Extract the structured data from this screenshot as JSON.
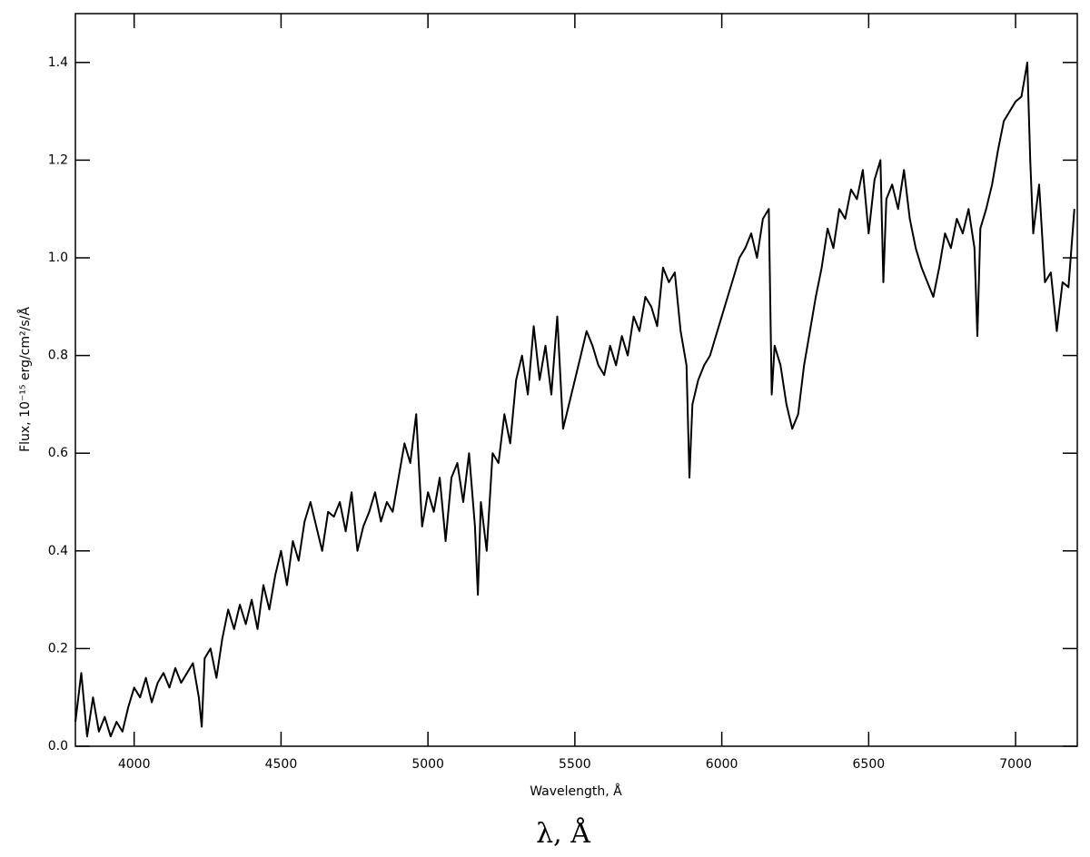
{
  "chart_data": {
    "type": "line",
    "xlabel": "Wavelength, Å",
    "ylabel": "Flux, 10⁻¹⁵ erg/cm²/s/Å",
    "annotation": "λ, Å",
    "color": "#000000",
    "xlim": [
      3800,
      7210
    ],
    "ylim": [
      0,
      1.5
    ],
    "xticks": [
      4000,
      4500,
      5000,
      5500,
      6000,
      6500,
      7000
    ],
    "yticks": [
      {
        "value": 0,
        "label": "0.0"
      },
      0.2,
      0.4,
      0.6,
      0.8,
      {
        "value": 1,
        "label": "1.0"
      },
      1.2,
      1.4
    ],
    "grid": false,
    "x": [
      3800,
      3820,
      3840,
      3860,
      3880,
      3900,
      3920,
      3940,
      3960,
      3980,
      4000,
      4020,
      4040,
      4060,
      4080,
      4100,
      4120,
      4140,
      4160,
      4180,
      4200,
      4220,
      4230,
      4240,
      4260,
      4280,
      4300,
      4320,
      4340,
      4360,
      4380,
      4400,
      4420,
      4440,
      4460,
      4480,
      4500,
      4520,
      4540,
      4560,
      4580,
      4600,
      4620,
      4640,
      4660,
      4680,
      4700,
      4720,
      4740,
      4760,
      4780,
      4800,
      4820,
      4840,
      4860,
      4880,
      4900,
      4920,
      4940,
      4960,
      4980,
      5000,
      5020,
      5040,
      5060,
      5080,
      5100,
      5120,
      5140,
      5160,
      5170,
      5180,
      5200,
      5220,
      5240,
      5260,
      5280,
      5300,
      5320,
      5340,
      5360,
      5380,
      5400,
      5420,
      5440,
      5460,
      5480,
      5500,
      5520,
      5540,
      5560,
      5580,
      5600,
      5620,
      5640,
      5660,
      5680,
      5700,
      5720,
      5740,
      5760,
      5780,
      5800,
      5820,
      5840,
      5860,
      5880,
      5890,
      5900,
      5920,
      5940,
      5960,
      5980,
      6000,
      6020,
      6040,
      6060,
      6080,
      6100,
      6120,
      6140,
      6160,
      6170,
      6180,
      6200,
      6220,
      6240,
      6260,
      6280,
      6300,
      6320,
      6340,
      6360,
      6380,
      6400,
      6420,
      6440,
      6460,
      6480,
      6500,
      6520,
      6540,
      6550,
      6560,
      6580,
      6600,
      6620,
      6640,
      6660,
      6680,
      6700,
      6720,
      6740,
      6760,
      6780,
      6800,
      6820,
      6840,
      6860,
      6870,
      6880,
      6900,
      6920,
      6940,
      6960,
      6980,
      7000,
      7020,
      7040,
      7050,
      7060,
      7080,
      7100,
      7120,
      7140,
      7160,
      7180,
      7200
    ],
    "values": [
      0.05,
      0.15,
      0.02,
      0.1,
      0.03,
      0.06,
      0.02,
      0.05,
      0.03,
      0.08,
      0.12,
      0.1,
      0.14,
      0.09,
      0.13,
      0.15,
      0.12,
      0.16,
      0.13,
      0.15,
      0.17,
      0.1,
      0.04,
      0.18,
      0.2,
      0.14,
      0.22,
      0.28,
      0.24,
      0.29,
      0.25,
      0.3,
      0.24,
      0.33,
      0.28,
      0.35,
      0.4,
      0.33,
      0.42,
      0.38,
      0.46,
      0.5,
      0.45,
      0.4,
      0.48,
      0.47,
      0.5,
      0.44,
      0.52,
      0.4,
      0.45,
      0.48,
      0.52,
      0.46,
      0.5,
      0.48,
      0.55,
      0.62,
      0.58,
      0.68,
      0.45,
      0.52,
      0.48,
      0.55,
      0.42,
      0.55,
      0.58,
      0.5,
      0.6,
      0.45,
      0.31,
      0.5,
      0.4,
      0.6,
      0.58,
      0.68,
      0.62,
      0.75,
      0.8,
      0.72,
      0.86,
      0.75,
      0.82,
      0.72,
      0.88,
      0.65,
      0.7,
      0.75,
      0.8,
      0.85,
      0.82,
      0.78,
      0.76,
      0.82,
      0.78,
      0.84,
      0.8,
      0.88,
      0.85,
      0.92,
      0.9,
      0.86,
      0.98,
      0.95,
      0.97,
      0.85,
      0.78,
      0.55,
      0.7,
      0.75,
      0.78,
      0.8,
      0.84,
      0.88,
      0.92,
      0.96,
      1.0,
      1.02,
      1.05,
      1.0,
      1.08,
      1.1,
      0.72,
      0.82,
      0.78,
      0.7,
      0.65,
      0.68,
      0.78,
      0.85,
      0.92,
      0.98,
      1.06,
      1.02,
      1.1,
      1.08,
      1.14,
      1.12,
      1.18,
      1.05,
      1.16,
      1.2,
      0.95,
      1.12,
      1.15,
      1.1,
      1.18,
      1.08,
      1.02,
      0.98,
      0.95,
      0.92,
      0.98,
      1.05,
      1.02,
      1.08,
      1.05,
      1.1,
      1.02,
      0.84,
      1.06,
      1.1,
      1.15,
      1.22,
      1.28,
      1.3,
      1.32,
      1.33,
      1.4,
      1.2,
      1.05,
      1.15,
      0.95,
      0.97,
      0.85,
      0.95,
      0.94,
      1.1
    ]
  }
}
